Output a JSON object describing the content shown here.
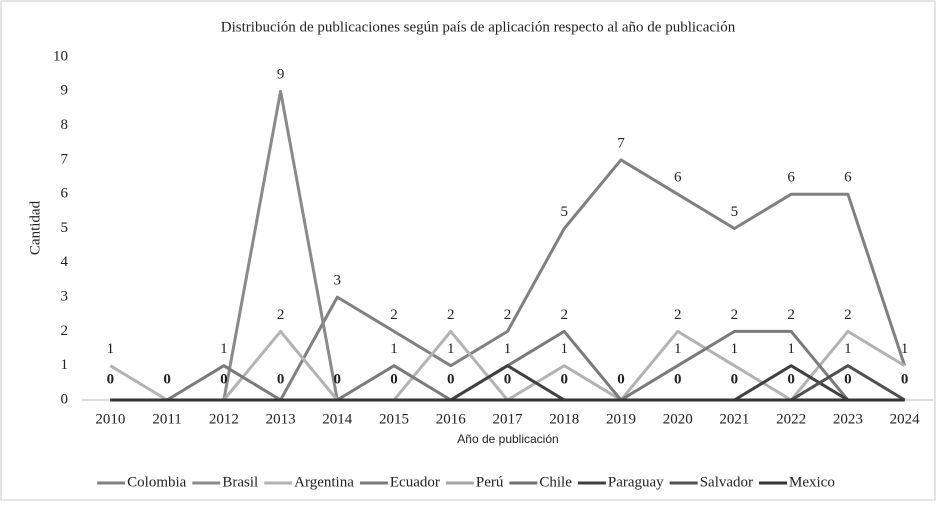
{
  "chart_data": {
    "type": "line",
    "title": "Distribución de publicaciones según país de aplicación respecto al año de publicación",
    "x_label": "Año de publicación",
    "y_label": "Cantidad",
    "categories": [
      "2010",
      "2011",
      "2012",
      "2013",
      "2014",
      "2015",
      "2016",
      "2017",
      "2018",
      "2019",
      "2020",
      "2021",
      "2022",
      "2023",
      "2024"
    ],
    "ylim": [
      0,
      10
    ],
    "yticks": [
      0,
      1,
      2,
      3,
      4,
      5,
      6,
      7,
      8,
      9,
      10
    ],
    "grid": false,
    "legend": "bottom",
    "series": [
      {
        "name": "Colombia",
        "color": "#808080",
        "values": [
          0,
          0,
          0,
          0,
          3,
          2,
          1,
          2,
          5,
          7,
          6,
          5,
          6,
          6,
          1
        ]
      },
      {
        "name": "Brasil",
        "color": "#8a8a8a",
        "values": [
          0,
          0,
          0,
          9,
          0,
          0,
          0,
          0,
          0,
          0,
          0,
          0,
          0,
          0,
          0
        ]
      },
      {
        "name": "Argentina",
        "color": "#b3b3b3",
        "values": [
          1,
          0,
          0,
          2,
          0,
          0,
          2,
          0,
          1,
          0,
          2,
          1,
          0,
          2,
          1
        ]
      },
      {
        "name": "Ecuador",
        "color": "#7a7a7a",
        "values": [
          0,
          0,
          1,
          0,
          0,
          1,
          0,
          1,
          2,
          0,
          1,
          2,
          2,
          0,
          0
        ]
      },
      {
        "name": "Perú",
        "color": "#a6a6a6",
        "values": [
          0,
          0,
          0,
          0,
          0,
          0,
          0,
          0,
          0,
          0,
          0,
          0,
          0,
          0,
          0
        ]
      },
      {
        "name": "Chile",
        "color": "#6e6e6e",
        "values": [
          0,
          0,
          0,
          0,
          0,
          0,
          0,
          0,
          0,
          0,
          0,
          0,
          0,
          0,
          0
        ]
      },
      {
        "name": "Paraguay",
        "color": "#404040",
        "values": [
          0,
          0,
          0,
          0,
          0,
          0,
          0,
          1,
          0,
          0,
          0,
          0,
          1,
          0,
          0
        ]
      },
      {
        "name": "Salvador",
        "color": "#505050",
        "values": [
          0,
          0,
          0,
          0,
          0,
          0,
          0,
          0,
          0,
          0,
          0,
          0,
          0,
          1,
          0
        ]
      },
      {
        "name": "Mexico",
        "color": "#353535",
        "values": [
          0,
          0,
          0,
          0,
          0,
          0,
          0,
          0,
          0,
          0,
          0,
          0,
          0,
          0,
          0
        ]
      }
    ]
  }
}
